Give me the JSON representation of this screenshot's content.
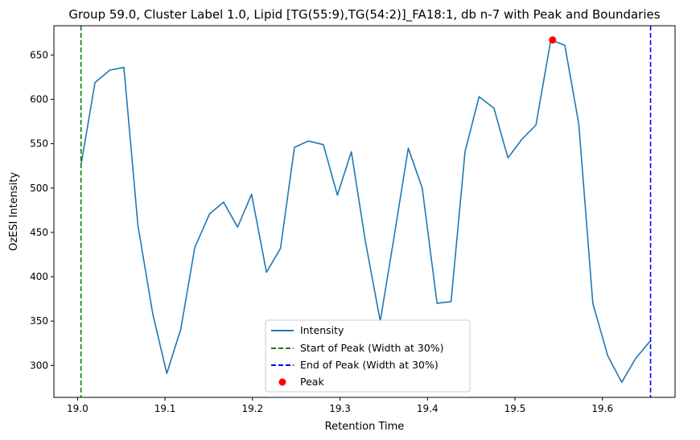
{
  "chart_data": {
    "type": "line",
    "title": "Group 59.0, Cluster Label 1.0, Lipid [TG(55:9),TG(54:2)]_FA18:1, db n-7 with Peak and Boundaries",
    "xlabel": "Retention Time",
    "ylabel": "OzESI Intensity",
    "xlim": [
      18.973,
      19.683
    ],
    "ylim": [
      264,
      683
    ],
    "xticks": [
      19.0,
      19.1,
      19.2,
      19.3,
      19.4,
      19.5,
      19.6
    ],
    "xtick_labels": [
      "19.0",
      "19.1",
      "19.2",
      "19.3",
      "19.4",
      "19.5",
      "19.6"
    ],
    "yticks": [
      300,
      350,
      400,
      450,
      500,
      550,
      600,
      650
    ],
    "ytick_labels": [
      "300",
      "350",
      "400",
      "450",
      "500",
      "550",
      "600",
      "650"
    ],
    "grid": false,
    "legend_position": "bottom-center",
    "series": [
      {
        "name": "Intensity",
        "color": "#1f77b4",
        "x": [
          19.004,
          19.02,
          19.037,
          19.053,
          19.069,
          19.086,
          19.102,
          19.118,
          19.134,
          19.151,
          19.167,
          19.183,
          19.199,
          19.216,
          19.232,
          19.248,
          19.264,
          19.281,
          19.297,
          19.313,
          19.329,
          19.346,
          19.362,
          19.378,
          19.394,
          19.411,
          19.427,
          19.443,
          19.459,
          19.476,
          19.492,
          19.508,
          19.524,
          19.541,
          19.557,
          19.573,
          19.589,
          19.606,
          19.622,
          19.638,
          19.655
        ],
        "y": [
          526,
          619,
          633,
          636,
          458,
          358,
          291,
          341,
          433,
          471,
          484,
          456,
          493,
          405,
          432,
          546,
          553,
          549,
          492,
          541,
          440,
          350,
          446,
          545,
          500,
          370,
          372,
          541,
          603,
          590,
          534,
          555,
          571,
          667,
          661,
          572,
          370,
          311,
          281,
          308,
          328
        ]
      }
    ],
    "vlines": [
      {
        "name": "Start of Peak (Width at 30%)",
        "x": 19.004,
        "color": "#008000",
        "style": "dashed"
      },
      {
        "name": "End of Peak (Width at 30%)",
        "x": 19.655,
        "color": "#0000ff",
        "style": "dashed"
      }
    ],
    "peak": {
      "name": "Peak",
      "x": 19.543,
      "y": 667,
      "color": "#ff0000"
    },
    "legend": [
      "Intensity",
      "Start of Peak (Width at 30%)",
      "End of Peak (Width at 30%)",
      "Peak"
    ]
  }
}
